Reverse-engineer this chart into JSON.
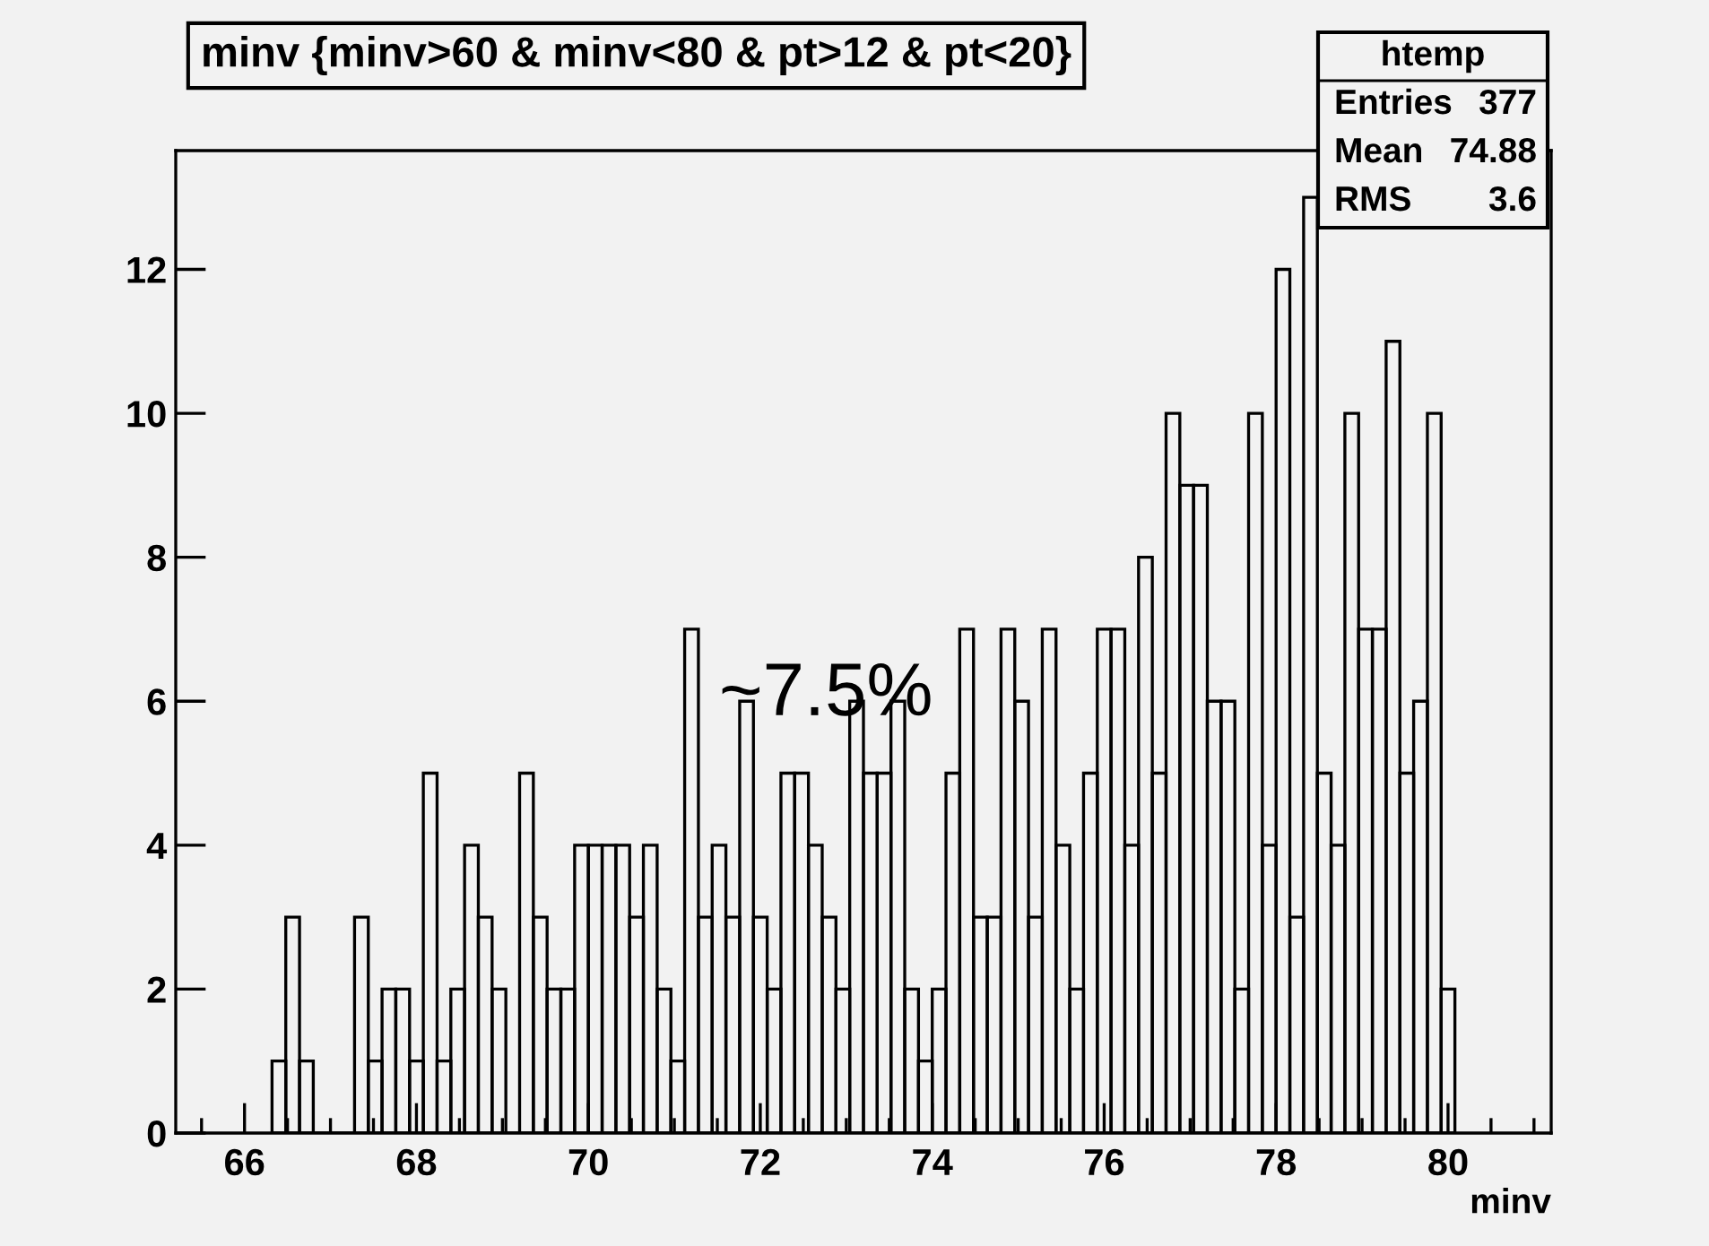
{
  "chart_data": {
    "type": "histogram",
    "title": "minv {minv>60 & minv<80 & pt>12 & pt<20}",
    "xlabel": "minv",
    "bins": [
      66.32,
      66.48,
      66.64,
      66.8,
      66.96,
      67.12,
      67.28,
      67.44,
      67.6,
      67.76,
      67.92,
      68.08,
      68.24,
      68.4,
      68.56,
      68.72,
      68.88,
      69.04,
      69.2,
      69.36,
      69.52,
      69.68,
      69.84,
      70.0,
      70.16,
      70.32,
      70.48,
      70.64,
      70.8,
      70.96,
      71.12,
      71.28,
      71.44,
      71.6,
      71.76,
      71.92,
      72.08,
      72.24,
      72.4,
      72.56,
      72.72,
      72.88,
      73.04,
      73.2,
      73.36,
      73.52,
      73.68,
      73.84,
      74.0,
      74.16,
      74.32,
      74.48,
      74.64,
      74.8,
      74.96,
      75.12,
      75.28,
      75.44,
      75.6,
      75.76,
      75.92,
      76.08,
      76.24,
      76.4,
      76.56,
      76.72,
      76.88,
      77.04,
      77.2,
      77.36,
      77.52,
      77.68,
      77.84,
      78.0,
      78.16,
      78.32,
      78.48,
      78.64,
      78.8,
      78.96,
      79.12,
      79.28,
      79.44,
      79.6,
      79.76,
      79.92,
      80.08
    ],
    "values": [
      1,
      3,
      1,
      0,
      0,
      0,
      3,
      1,
      2,
      2,
      1,
      5,
      1,
      2,
      4,
      3,
      2,
      0,
      5,
      3,
      2,
      2,
      4,
      4,
      4,
      4,
      3,
      4,
      2,
      1,
      7,
      3,
      4,
      3,
      6,
      3,
      2,
      5,
      5,
      4,
      3,
      2,
      6,
      5,
      5,
      6,
      2,
      1,
      2,
      5,
      7,
      3,
      3,
      7,
      6,
      3,
      7,
      4,
      2,
      5,
      7,
      7,
      4,
      8,
      5,
      10,
      9,
      9,
      6,
      6,
      2,
      10,
      4,
      12,
      3,
      13,
      5,
      4,
      10,
      7,
      7,
      11,
      5,
      6,
      10,
      2
    ],
    "color": "#000000",
    "xlim": [
      65.2,
      81.2
    ],
    "xticks": [
      66,
      68,
      70,
      72,
      74,
      76,
      78,
      80
    ],
    "ylim": [
      0,
      13.65
    ],
    "yticks": [
      0,
      2,
      4,
      6,
      8,
      10,
      12
    ],
    "grid": false,
    "annotations": [
      "~7.5%",
      "htemp",
      "Entries",
      "377",
      "Mean",
      "74.88",
      "RMS",
      "3.6"
    ]
  }
}
